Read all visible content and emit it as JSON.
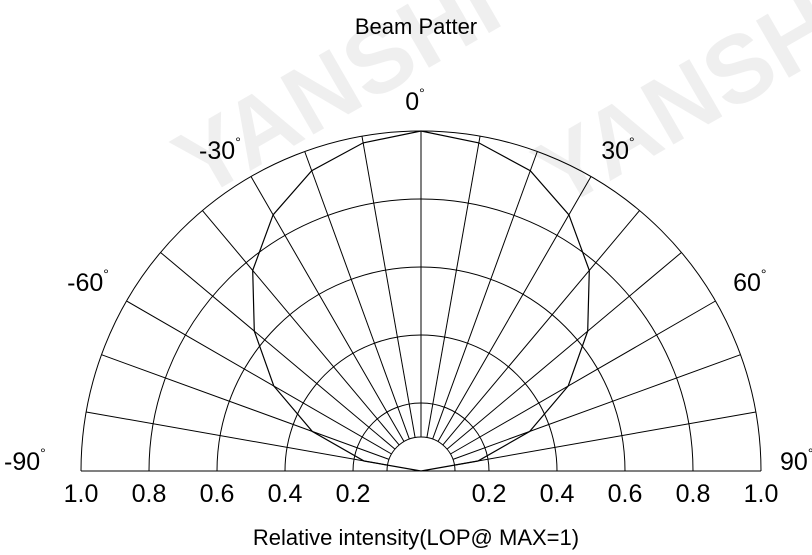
{
  "chart_data": {
    "type": "polar",
    "title": "Beam Patter",
    "xlabel": "Relative intensity(LOP@ MAX=1)",
    "angle_labels": [
      {
        "angle": -90,
        "text": "-90"
      },
      {
        "angle": -60,
        "text": "-60"
      },
      {
        "angle": -30,
        "text": "-30"
      },
      {
        "angle": 0,
        "text": "0"
      },
      {
        "angle": 30,
        "text": "30"
      },
      {
        "angle": 60,
        "text": "60"
      },
      {
        "angle": 90,
        "text": "90"
      }
    ],
    "degree_symbol": "°",
    "radial_tick_labels": [
      "1.0",
      "0.8",
      "0.6",
      "0.4",
      "0.2",
      "0.2",
      "0.4",
      "0.6",
      "0.8",
      "1.0"
    ],
    "radial_ticks": [
      1.0,
      0.8,
      0.6,
      0.4,
      0.2,
      0.2,
      0.4,
      0.6,
      0.8,
      1.0
    ],
    "radial_rings": [
      0.1,
      0.2,
      0.4,
      0.6,
      0.8,
      1.0
    ],
    "angular_grid_step_deg": 10,
    "angle_range": [
      -90,
      90
    ],
    "grid": true,
    "series": [
      {
        "angles": [
          -90,
          -80,
          -70,
          -60,
          -50,
          -40,
          -30,
          -20,
          -10,
          0,
          10,
          20,
          30,
          40,
          50,
          60,
          70,
          80,
          90
        ],
        "values": [
          0.0,
          0.17,
          0.34,
          0.5,
          0.64,
          0.77,
          0.87,
          0.94,
          0.98,
          1.0,
          0.98,
          0.94,
          0.87,
          0.77,
          0.64,
          0.5,
          0.34,
          0.17,
          0.0
        ]
      }
    ],
    "watermark": "YANSHI"
  }
}
